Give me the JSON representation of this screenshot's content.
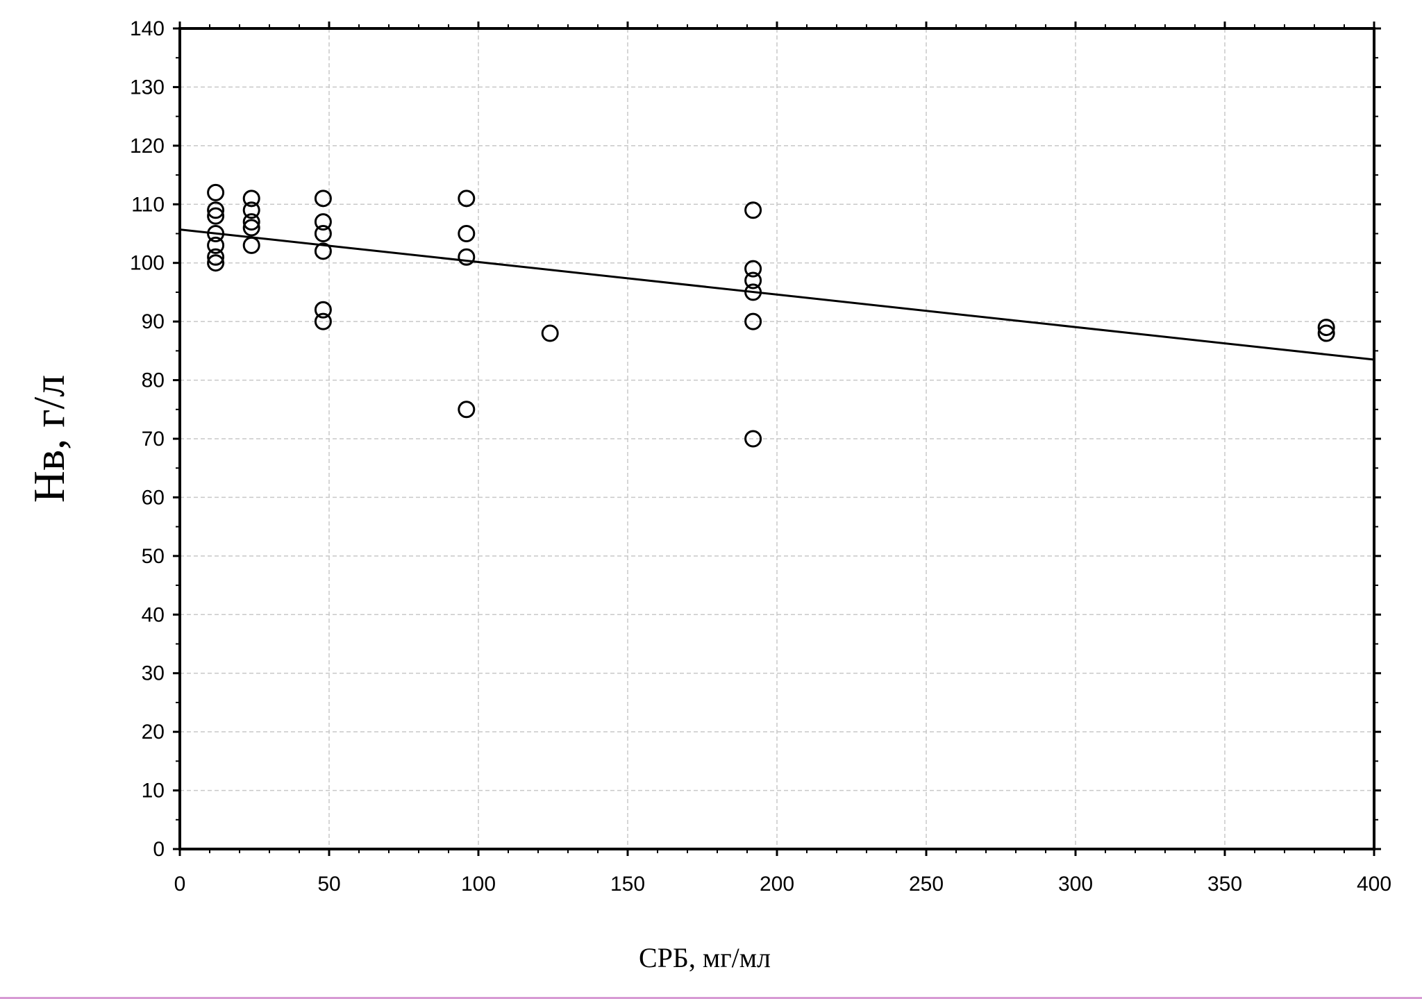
{
  "chart_data": {
    "type": "scatter",
    "title": "",
    "xlabel": "СРБ, мг/мл",
    "ylabel": "Нв, г/л",
    "xlim": [
      0,
      400
    ],
    "ylim": [
      0,
      140
    ],
    "x_ticks": [
      0,
      50,
      100,
      150,
      200,
      250,
      300,
      350,
      400
    ],
    "y_ticks": [
      0,
      10,
      20,
      30,
      40,
      50,
      60,
      70,
      80,
      90,
      100,
      110,
      120,
      130,
      140
    ],
    "grid": true,
    "legend": "none",
    "colors": {
      "marker": "#000000",
      "grid": "#c8c8c8",
      "line": "#000000"
    },
    "points": [
      [
        12,
        112
      ],
      [
        12,
        109
      ],
      [
        12,
        108
      ],
      [
        12,
        105
      ],
      [
        12,
        103
      ],
      [
        12,
        101
      ],
      [
        12,
        100
      ],
      [
        24,
        111
      ],
      [
        24,
        109
      ],
      [
        24,
        107
      ],
      [
        24,
        106
      ],
      [
        24,
        103
      ],
      [
        48,
        111
      ],
      [
        48,
        107
      ],
      [
        48,
        105
      ],
      [
        48,
        102
      ],
      [
        48,
        92
      ],
      [
        48,
        90
      ],
      [
        96,
        111
      ],
      [
        96,
        105
      ],
      [
        96,
        101
      ],
      [
        96,
        75
      ],
      [
        124,
        88
      ],
      [
        192,
        109
      ],
      [
        192,
        99
      ],
      [
        192,
        97
      ],
      [
        192,
        95
      ],
      [
        192,
        90
      ],
      [
        192,
        70
      ],
      [
        384,
        89
      ],
      [
        384,
        88
      ]
    ],
    "fit_line": {
      "x": [
        0,
        400
      ],
      "y": [
        105.7,
        83.5
      ]
    }
  }
}
